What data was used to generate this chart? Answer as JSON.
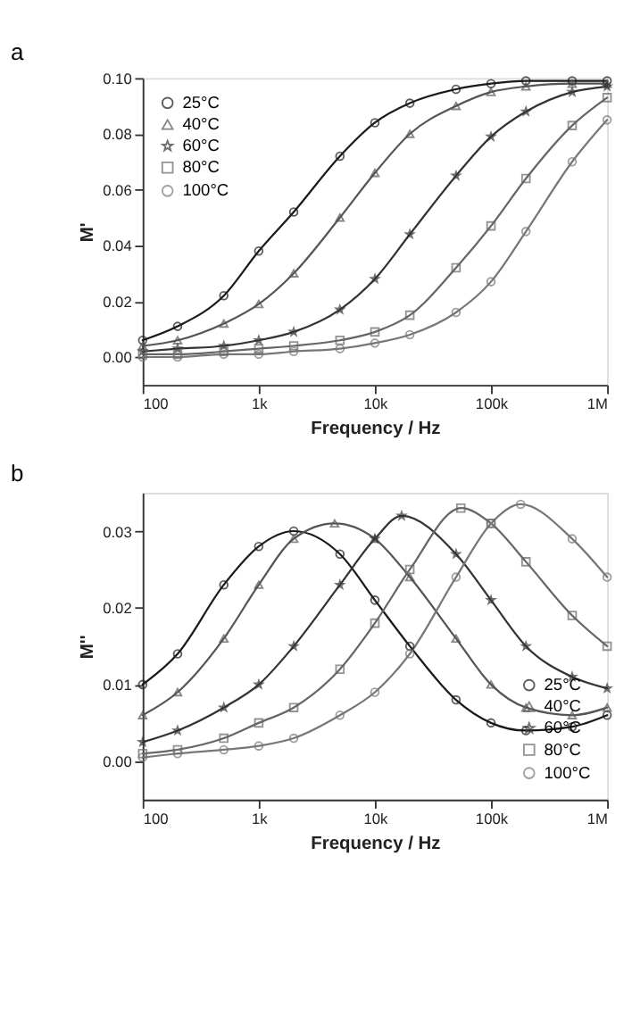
{
  "chart_data": [
    {
      "type": "line",
      "title": "a",
      "xlabel": "Frequency / Hz",
      "ylabel": "M'",
      "log": "x",
      "legend": "top left",
      "grid": false,
      "line_style": "solid",
      "x": [
        100,
        200,
        500,
        1000,
        2000,
        5000,
        10000,
        20000,
        50000,
        100000,
        200000,
        500000,
        1000000
      ],
      "xlim": [
        100,
        1000000
      ],
      "xticks": [
        100,
        {
          "value": 1000,
          "label": "1k"
        },
        {
          "value": 10000,
          "label": "10k"
        },
        {
          "value": 100000,
          "label": "100k"
        },
        {
          "value": 1000000,
          "label": "1M"
        }
      ],
      "ylim": [
        -0.01,
        0.1
      ],
      "yticks": [
        {
          "value": 0,
          "label": "0.00"
        },
        {
          "value": 0.02,
          "label": "0.02"
        },
        {
          "value": 0.04,
          "label": "0.04"
        },
        {
          "value": 0.06,
          "label": "0.06"
        },
        {
          "value": 0.08,
          "label": "0.08"
        },
        {
          "value": 0.1,
          "label": "0.10"
        }
      ],
      "series": [
        {
          "name": "25°C",
          "color": "#1a1a1a",
          "marker": "circle",
          "values": [
            0.006,
            0.011,
            0.022,
            0.038,
            0.052,
            0.072,
            0.084,
            0.091,
            0.096,
            0.098,
            0.099,
            0.099,
            0.099
          ]
        },
        {
          "name": "40°C",
          "color": "#555555",
          "marker": "triangle",
          "values": [
            0.004,
            0.006,
            0.012,
            0.019,
            0.03,
            0.05,
            0.066,
            0.08,
            0.09,
            0.095,
            0.097,
            0.098,
            0.098
          ]
        },
        {
          "name": "60°C",
          "color": "#333333",
          "marker": "star",
          "values": [
            0.002,
            0.003,
            0.004,
            0.006,
            0.009,
            0.017,
            0.028,
            0.044,
            0.065,
            0.079,
            0.088,
            0.095,
            0.097
          ]
        },
        {
          "name": "80°C",
          "color": "#666666",
          "marker": "square",
          "values": [
            0.001,
            0.001,
            0.002,
            0.003,
            0.004,
            0.006,
            0.009,
            0.015,
            0.032,
            0.047,
            0.064,
            0.083,
            0.093
          ]
        },
        {
          "name": "100°C",
          "color": "#777777",
          "marker": "circle",
          "values": [
            0.0,
            0.0,
            0.001,
            0.001,
            0.002,
            0.003,
            0.005,
            0.008,
            0.016,
            0.027,
            0.045,
            0.07,
            0.085
          ]
        }
      ]
    },
    {
      "type": "line",
      "title": "b",
      "xlabel": "Frequency / Hz",
      "ylabel": "M''",
      "log": "x",
      "legend": "bottom right",
      "grid": false,
      "line_style": "solid",
      "xlim": [
        100,
        1000000
      ],
      "xticks": [
        100,
        {
          "value": 1000,
          "label": "1k"
        },
        {
          "value": 10000,
          "label": "10k"
        },
        {
          "value": 100000,
          "label": "100k"
        },
        {
          "value": 1000000,
          "label": "1M"
        }
      ],
      "ylim": [
        -0.005,
        0.035
      ],
      "yticks": [
        {
          "value": 0,
          "label": "0.00"
        },
        {
          "value": 0.01,
          "label": "0.01"
        },
        {
          "value": 0.02,
          "label": "0.02"
        },
        {
          "value": 0.03,
          "label": "0.03"
        }
      ],
      "series": [
        {
          "name": "25°C",
          "color": "#1a1a1a",
          "marker": "circle",
          "x": [
            100,
            200,
            500,
            1000,
            2000,
            5000,
            10000,
            20000,
            50000,
            100000,
            200000,
            500000,
            1000000
          ],
          "values": [
            0.01,
            0.014,
            0.023,
            0.028,
            0.03,
            0.027,
            0.021,
            0.015,
            0.008,
            0.005,
            0.004,
            0.0045,
            0.006
          ]
        },
        {
          "name": "40°C",
          "color": "#555555",
          "marker": "triangle",
          "x": [
            100,
            200,
            500,
            1000,
            2000,
            4500,
            10000,
            20000,
            50000,
            100000,
            200000,
            500000,
            1000000
          ],
          "values": [
            0.006,
            0.009,
            0.016,
            0.023,
            0.029,
            0.031,
            0.029,
            0.024,
            0.016,
            0.01,
            0.007,
            0.006,
            0.007
          ]
        },
        {
          "name": "60°C",
          "color": "#333333",
          "marker": "star",
          "x": [
            100,
            200,
            500,
            1000,
            2000,
            5000,
            10000,
            17000,
            50000,
            100000,
            200000,
            500000,
            1000000
          ],
          "values": [
            0.0025,
            0.004,
            0.007,
            0.01,
            0.015,
            0.023,
            0.029,
            0.032,
            0.027,
            0.021,
            0.015,
            0.011,
            0.0095
          ]
        },
        {
          "name": "80°C",
          "color": "#666666",
          "marker": "square",
          "x": [
            100,
            200,
            500,
            1000,
            2000,
            5000,
            10000,
            20000,
            55000,
            100000,
            200000,
            500000,
            1000000
          ],
          "values": [
            0.001,
            0.0015,
            0.003,
            0.005,
            0.007,
            0.012,
            0.018,
            0.025,
            0.033,
            0.031,
            0.026,
            0.019,
            0.015
          ]
        },
        {
          "name": "100°C",
          "color": "#777777",
          "marker": "circle",
          "x": [
            100,
            200,
            500,
            1000,
            2000,
            5000,
            10000,
            20000,
            50000,
            100000,
            180000,
            500000,
            1000000
          ],
          "values": [
            0.0005,
            0.001,
            0.0015,
            0.002,
            0.003,
            0.006,
            0.009,
            0.014,
            0.024,
            0.031,
            0.0335,
            0.029,
            0.024
          ]
        }
      ]
    }
  ]
}
